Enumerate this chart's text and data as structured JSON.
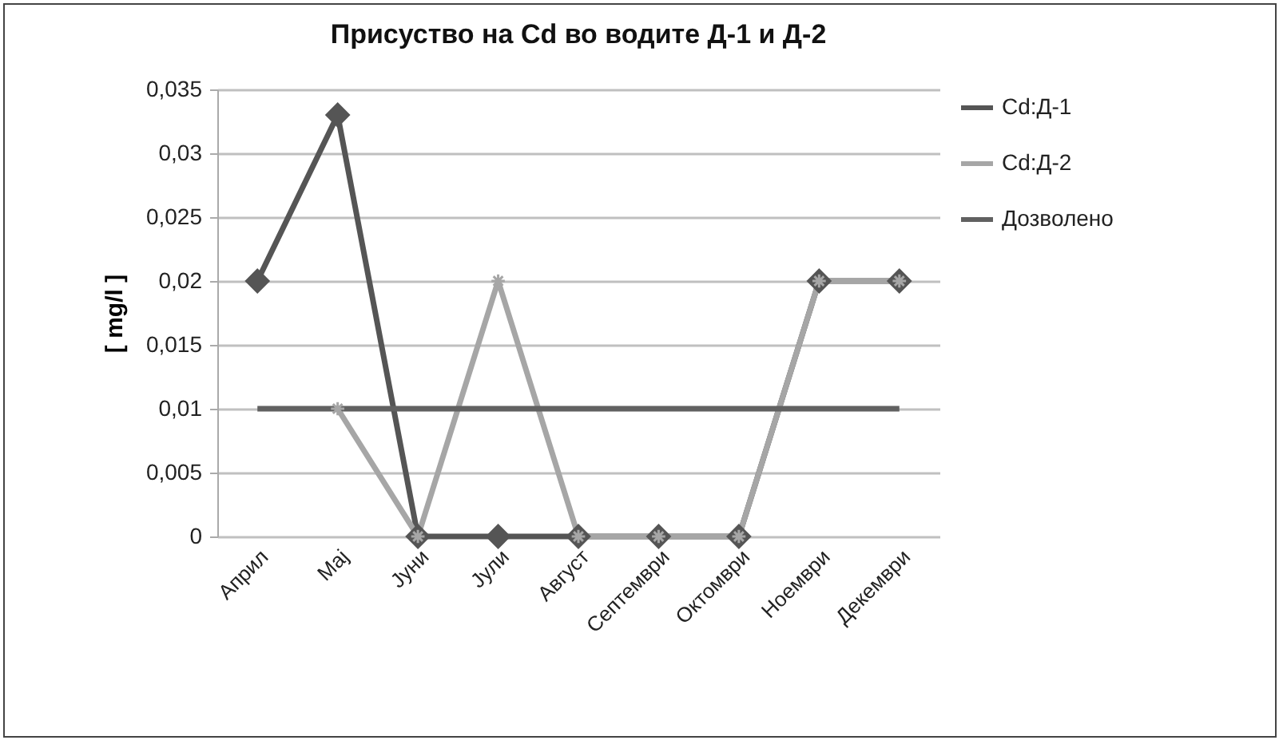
{
  "chart_data": {
    "type": "line",
    "title": "Присуство на Cd во водите Д-1 и Д-2",
    "ylabel": "[ mg/l ]",
    "categories": [
      "Април",
      "Мај",
      "Јуни",
      "Јули",
      "Август",
      "Септември",
      "Октомври",
      "Ноември",
      "Декември"
    ],
    "series": [
      {
        "name": "Cd:Д-1",
        "color": "#555555",
        "marker": "diamond",
        "values": [
          0.02,
          0.033,
          0,
          0,
          0,
          0,
          0,
          0.02,
          0.02
        ]
      },
      {
        "name": "Cd:Д-2",
        "color": "#a6a6a6",
        "marker": "cross",
        "values": [
          null,
          0.01,
          0,
          0.02,
          0,
          0,
          0,
          0.02,
          0.02
        ]
      },
      {
        "name": "Дозволено",
        "color": "#616161",
        "marker": "none",
        "values": [
          0.01,
          0.01,
          0.01,
          0.01,
          0.01,
          0.01,
          0.01,
          0.01,
          0.01
        ]
      }
    ],
    "ylim": [
      0,
      0.035
    ],
    "yticks": [
      {
        "value": 0,
        "label": "0"
      },
      {
        "value": 0.005,
        "label": "0,005"
      },
      {
        "value": 0.01,
        "label": "0,01"
      },
      {
        "value": 0.015,
        "label": "0,015"
      },
      {
        "value": 0.02,
        "label": "0,02"
      },
      {
        "value": 0.025,
        "label": "0,025"
      },
      {
        "value": 0.03,
        "label": "0,03"
      },
      {
        "value": 0.035,
        "label": "0,035"
      }
    ],
    "grid": "y",
    "legend": "right"
  }
}
